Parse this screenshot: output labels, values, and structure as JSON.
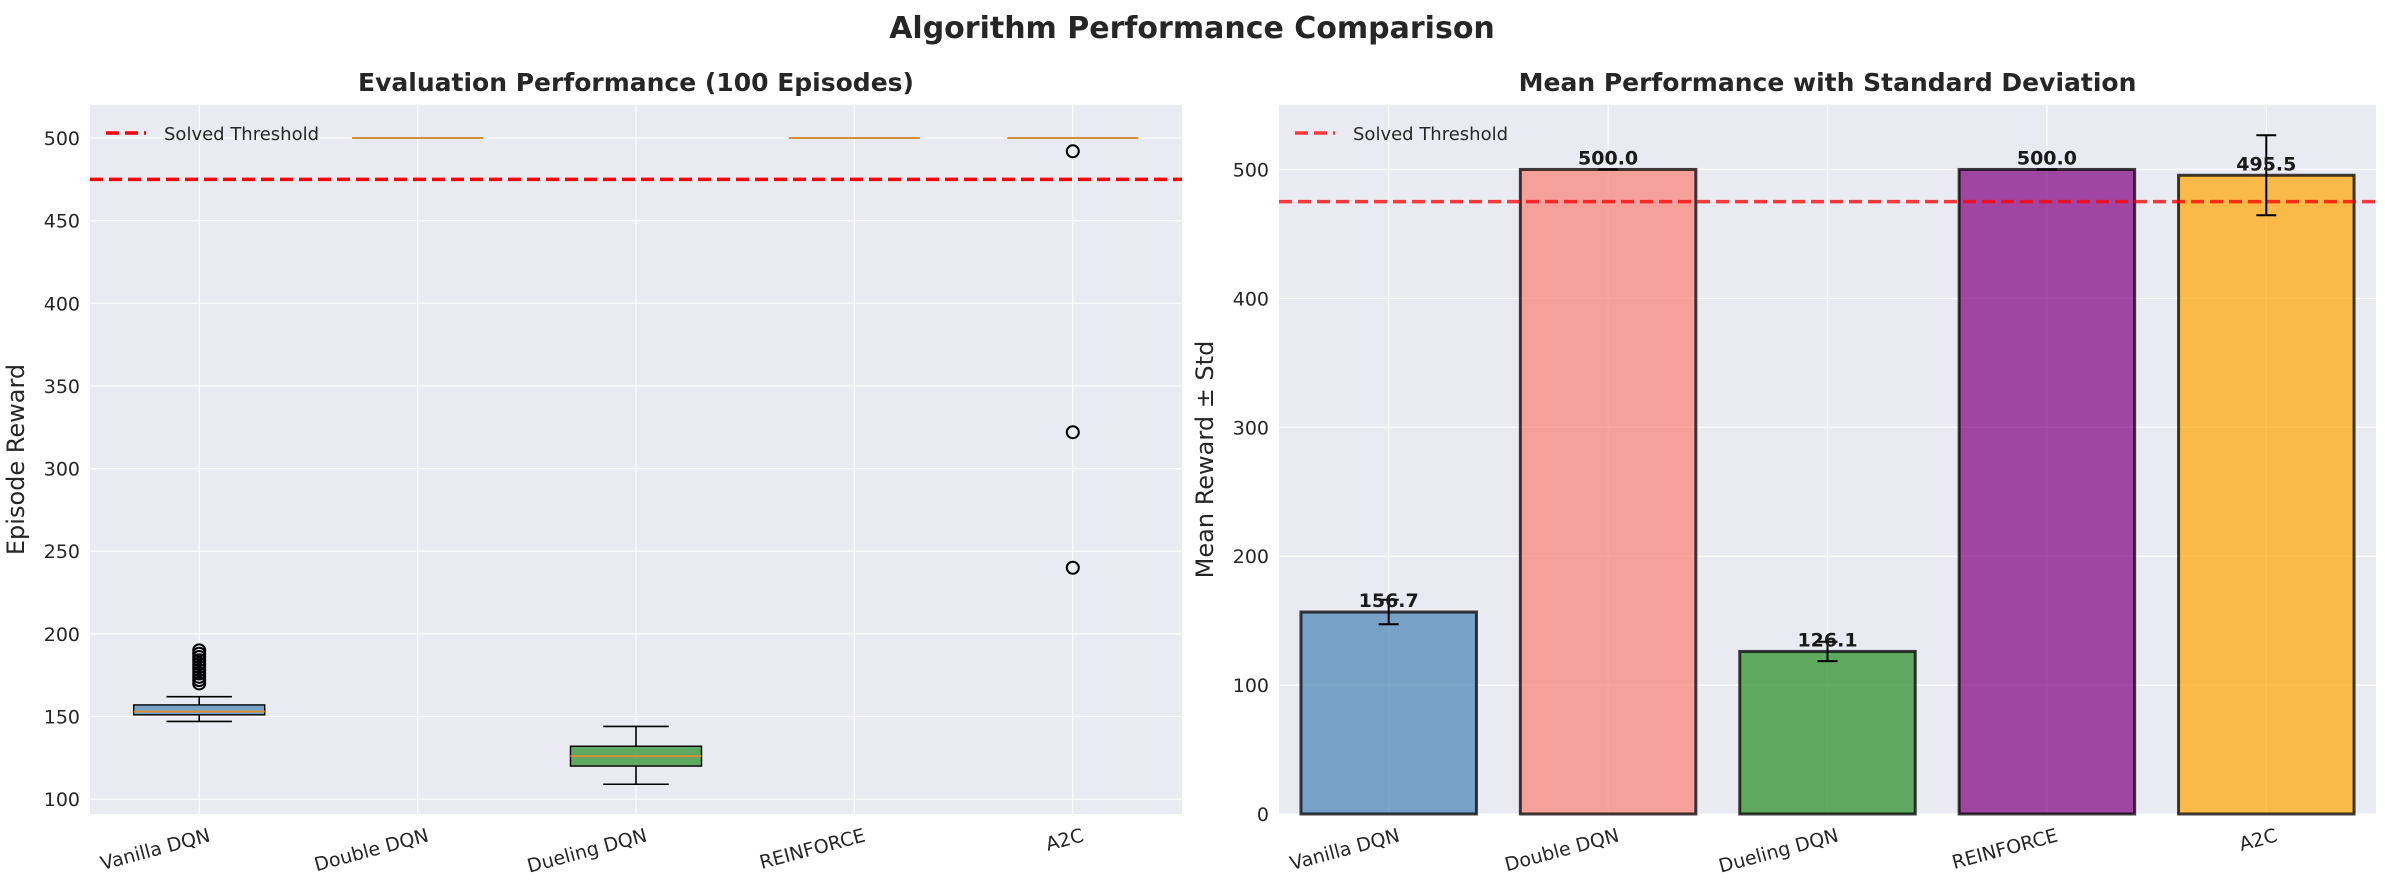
{
  "figure": {
    "title": "Algorithm Performance Comparison"
  },
  "colors": {
    "panel_bg": "#eaeaf2",
    "grid": "#ffffff",
    "threshold": "#ff0000",
    "median": "#d4913b"
  },
  "chart_data": [
    {
      "type": "box",
      "title": "Evaluation Performance (100 Episodes)",
      "xlabel": "",
      "ylabel": "Episode Reward",
      "ylim": [
        91,
        520
      ],
      "yticks": [
        100,
        150,
        200,
        250,
        300,
        350,
        400,
        450,
        500
      ],
      "grid": true,
      "legend": {
        "placement": "upper-left",
        "entries": [
          "Solved Threshold"
        ]
      },
      "threshold": {
        "label": "Solved Threshold",
        "value": 475,
        "color": "#ff0000"
      },
      "categories": [
        "Vanilla DQN",
        "Double DQN",
        "Dueling DQN",
        "REINFORCE",
        "A2C"
      ],
      "boxes": [
        {
          "name": "Vanilla DQN",
          "whisker_low": 147,
          "q1": 151,
          "median": 153,
          "q3": 157,
          "whisker_high": 162,
          "outliers": [
            170,
            172,
            174,
            176,
            178,
            180,
            182,
            184,
            186,
            188,
            190
          ],
          "color": "#4682b4"
        },
        {
          "name": "Double DQN",
          "whisker_low": 500,
          "q1": 500,
          "median": 500,
          "q3": 500,
          "whisker_high": 500,
          "outliers": [],
          "color": "#fa8072"
        },
        {
          "name": "Dueling DQN",
          "whisker_low": 109,
          "q1": 120,
          "median": 126,
          "q3": 132,
          "whisker_high": 144,
          "outliers": [],
          "color": "#228b22"
        },
        {
          "name": "REINFORCE",
          "whisker_low": 500,
          "q1": 500,
          "median": 500,
          "q3": 500,
          "whisker_high": 500,
          "outliers": [],
          "color": "#800080"
        },
        {
          "name": "A2C",
          "whisker_low": 500,
          "q1": 500,
          "median": 500,
          "q3": 500,
          "whisker_high": 500,
          "outliers": [
            492,
            322,
            240
          ],
          "color": "#ffa500"
        }
      ]
    },
    {
      "type": "bar",
      "title": "Mean Performance with Standard Deviation",
      "xlabel": "",
      "ylabel": "Mean Reward ± Std",
      "ylim": [
        0,
        550
      ],
      "yticks": [
        0,
        100,
        200,
        300,
        400,
        500
      ],
      "grid": true,
      "legend": {
        "placement": "upper-left",
        "entries": [
          "Solved Threshold"
        ]
      },
      "threshold": {
        "label": "Solved Threshold",
        "value": 475,
        "color": "#ff0000"
      },
      "categories": [
        "Vanilla DQN",
        "Double DQN",
        "Dueling DQN",
        "REINFORCE",
        "A2C"
      ],
      "values": [
        156.7,
        500.0,
        126.1,
        500.0,
        495.5
      ],
      "errors": [
        9.5,
        0.0,
        7.5,
        0.0,
        31.0
      ],
      "labels": [
        "156.7",
        "500.0",
        "126.1",
        "500.0",
        "495.5"
      ],
      "colors": [
        "#4682b4",
        "#fa8072",
        "#228b22",
        "#800080",
        "#ffa500"
      ]
    }
  ]
}
